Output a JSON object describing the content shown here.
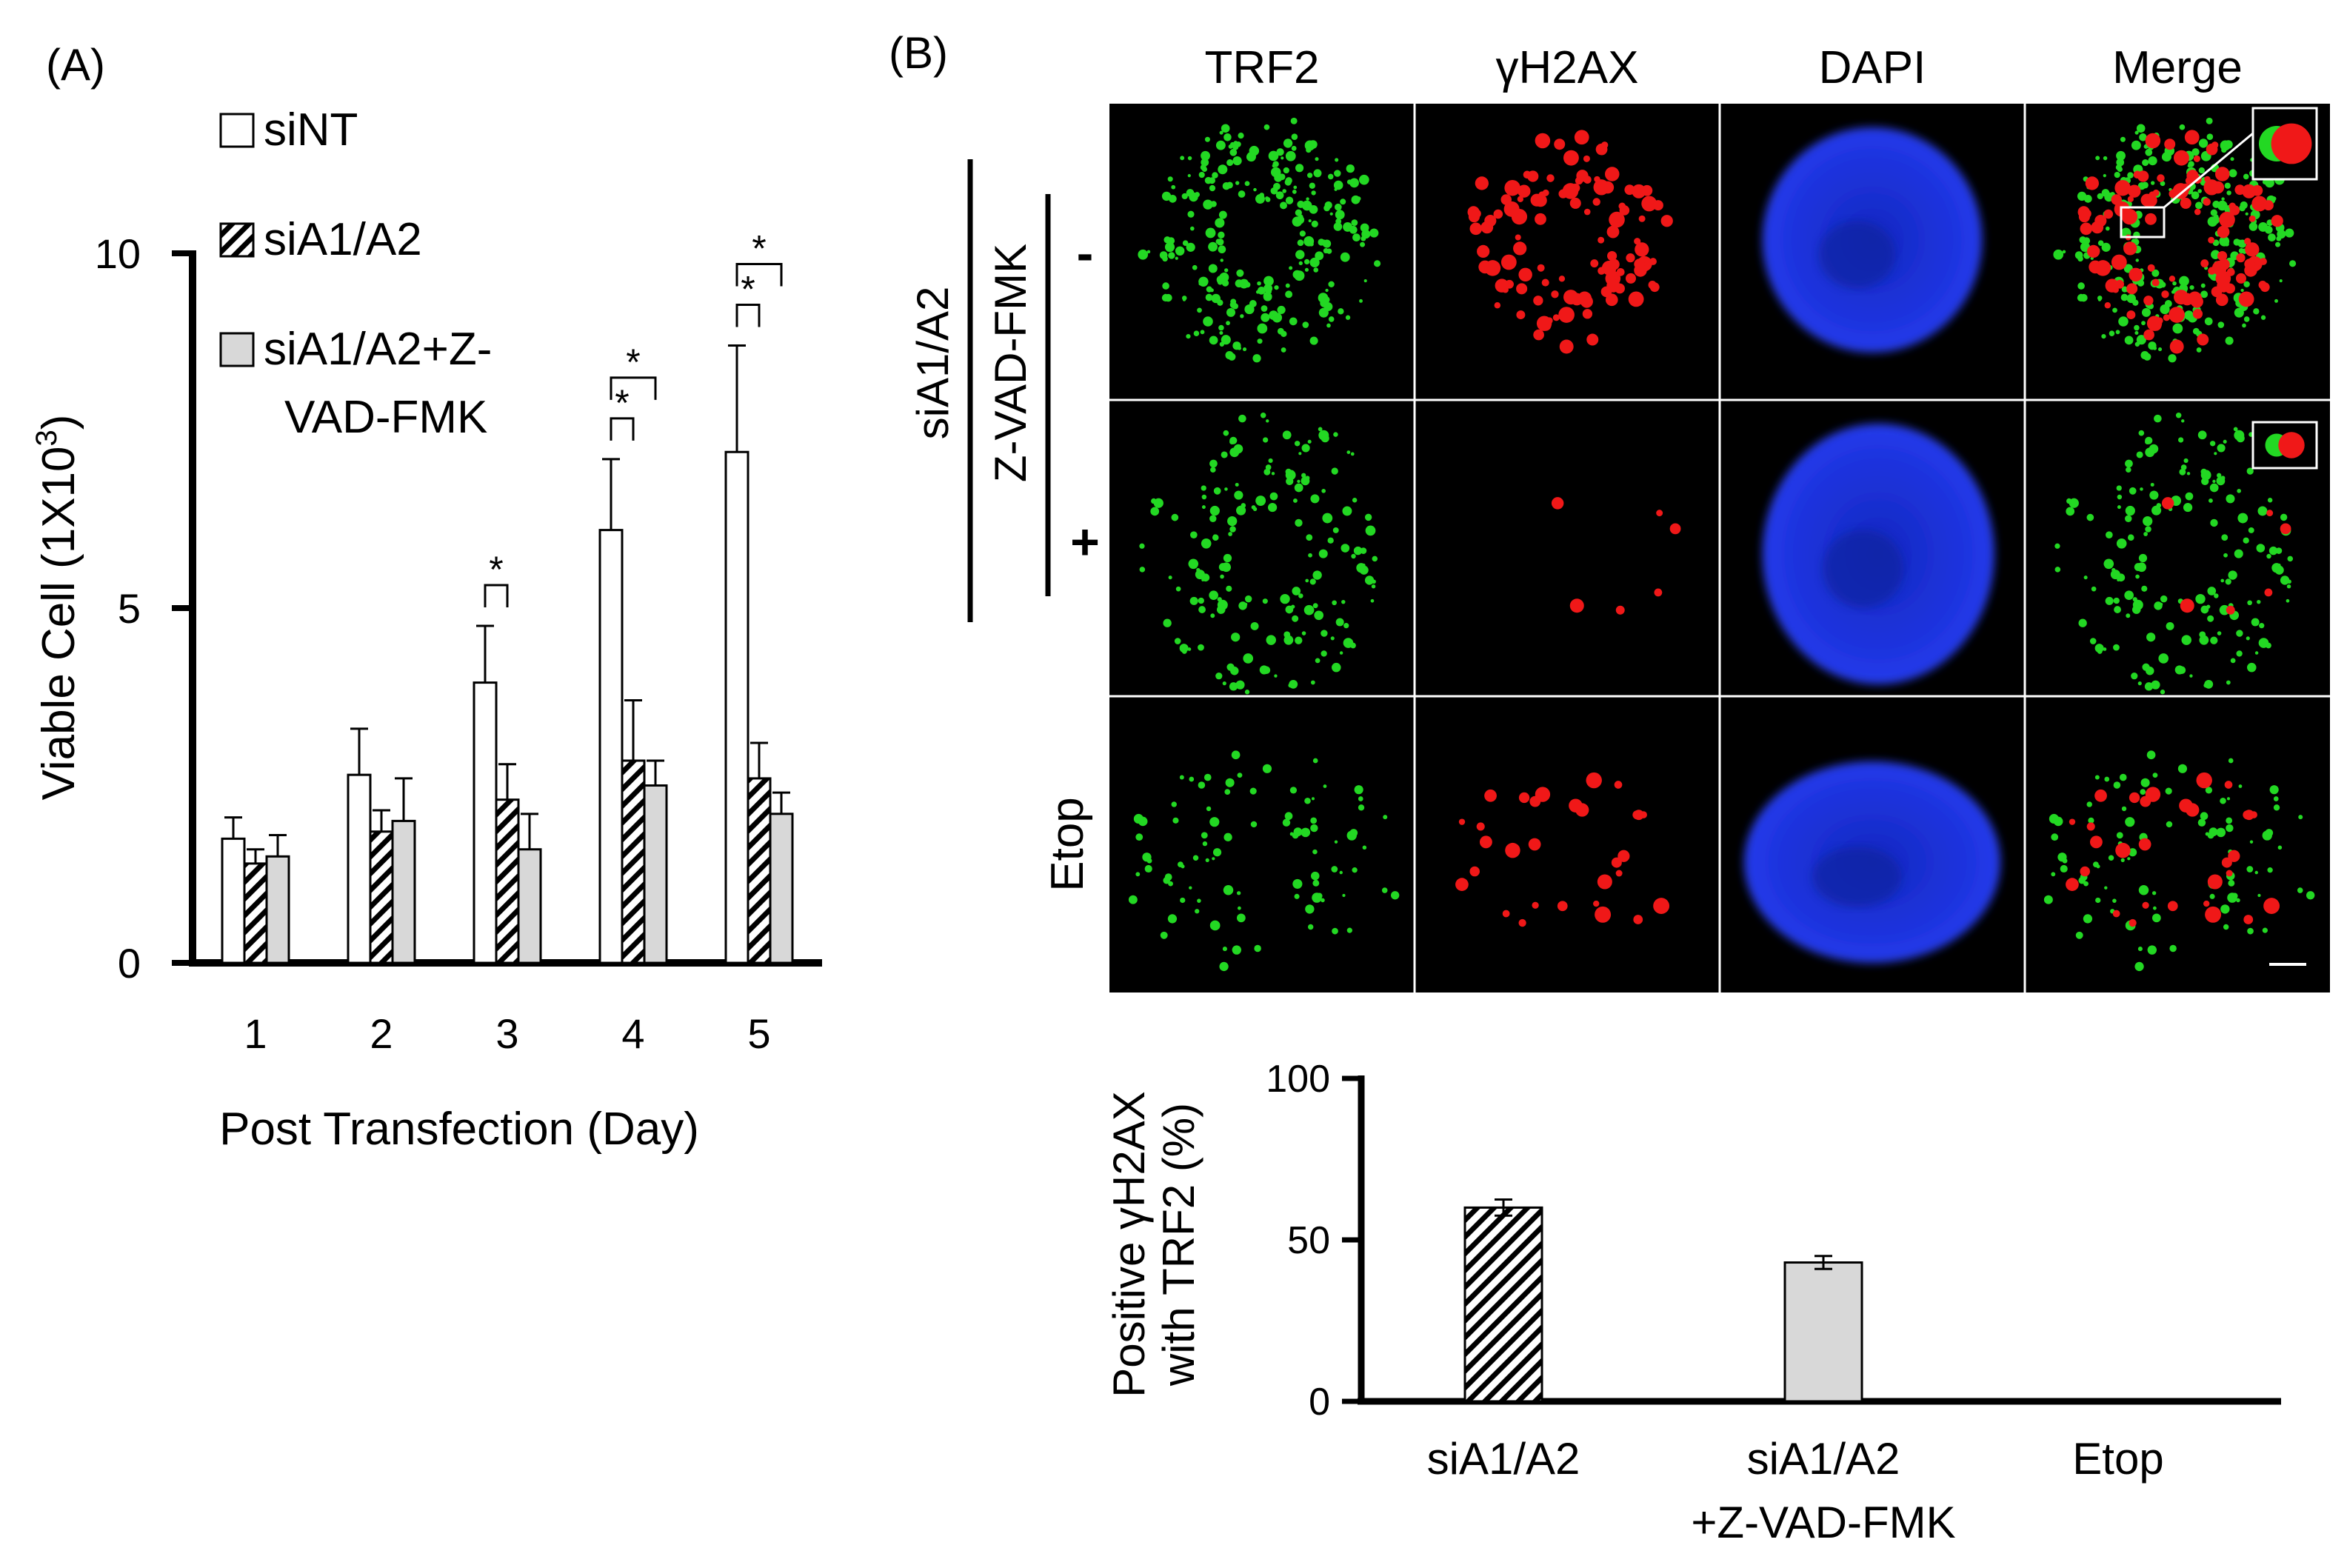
{
  "panel_a_label": "(A)",
  "panel_b_label": "(B)",
  "micro_columns": [
    "TRF2",
    "γH2AX",
    "DAPI",
    "Merge"
  ],
  "micro_rows": [
    "-",
    "+",
    "Etop"
  ],
  "micro_group_outer": "siA1/A2",
  "micro_group_inner": "Z-VAD-FMK",
  "colors": {
    "trf2_green": "#23d823",
    "h2ax_red": "#f01818",
    "dapi_blue": "#1e30d8",
    "nt_fill": "#ffffff",
    "a1a2_hatch": "#000000",
    "zvad_fill": "#d8d8d8"
  },
  "chart_data": [
    {
      "type": "bar",
      "title": "",
      "xlabel": "Post Transfection (Day)",
      "ylabel": "Viable Cell (1X10",
      "ylabel_sup": "3",
      "ylabel_end": ")",
      "ylim": [
        0,
        10
      ],
      "yticks": [
        0,
        5,
        10
      ],
      "categories": [
        "1",
        "2",
        "3",
        "4",
        "5"
      ],
      "series": [
        {
          "name": "siNT",
          "pattern": "open",
          "values": [
            1.75,
            2.65,
            3.95,
            6.1,
            7.2
          ],
          "errors": [
            0.3,
            0.65,
            0.8,
            1.0,
            1.5
          ]
        },
        {
          "name": "siA1/A2",
          "pattern": "hatched",
          "values": [
            1.4,
            1.85,
            2.3,
            2.85,
            2.6
          ],
          "errors": [
            0.2,
            0.3,
            0.5,
            0.85,
            0.5
          ]
        },
        {
          "name": "siA1/A2+Z-VAD-FMK",
          "pattern": "gray",
          "values": [
            1.5,
            2.0,
            1.6,
            2.5,
            2.1
          ],
          "errors": [
            0.3,
            0.6,
            0.5,
            0.35,
            0.3
          ]
        }
      ],
      "legend_lines": [
        [
          "siNT"
        ],
        [
          "siA1/A2"
        ],
        [
          "siA1/A2+Z-",
          "VAD-FMK"
        ]
      ],
      "legend_position": "top-left",
      "grid": false,
      "significance_marker": "*",
      "significance": [
        {
          "category": "3",
          "pair": [
            0,
            1
          ]
        },
        {
          "category": "4",
          "pair": [
            0,
            1
          ]
        },
        {
          "category": "4",
          "pair": [
            0,
            2
          ]
        },
        {
          "category": "5",
          "pair": [
            0,
            1
          ]
        },
        {
          "category": "5",
          "pair": [
            0,
            2
          ]
        }
      ]
    },
    {
      "type": "bar",
      "title": "",
      "xlabel": "",
      "ylabel_lines": [
        "Positive γH2AX",
        "with TRF2 (%)"
      ],
      "ylim": [
        0,
        100
      ],
      "yticks": [
        0,
        50,
        100
      ],
      "categories": [
        [
          "siA1/A2"
        ],
        [
          "siA1/A2",
          "+Z-VAD-FMK"
        ],
        [
          "Etop"
        ]
      ],
      "values": [
        60,
        43,
        0
      ],
      "errors": [
        2.5,
        2,
        0
      ],
      "patterns": [
        "hatched",
        "gray",
        "none"
      ],
      "grid": false
    }
  ]
}
